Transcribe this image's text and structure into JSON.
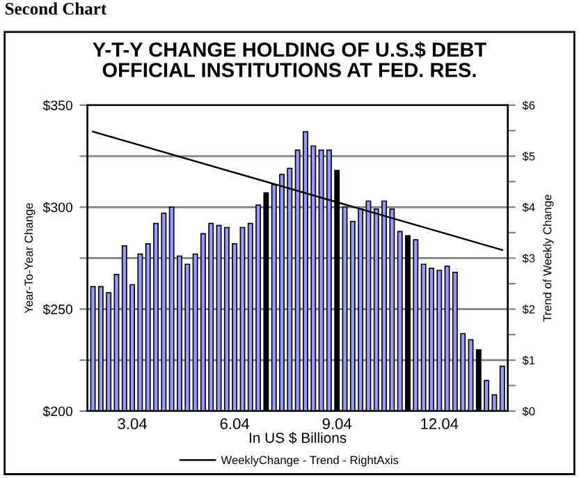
{
  "chart_data": {
    "type": "bar",
    "title": "Y-T-Y CHANGE HOLDING OF U.S.$ DEBT\nOFFICIAL INSTITUTIONS AT FED. RES.",
    "xlabel": "In US $ Billions",
    "ylabel": "Year-To-Year Change",
    "y2label": "Trend of Weekly Change",
    "annotations": [
      "Second Chart"
    ],
    "categories": [
      null,
      null,
      null,
      null,
      null,
      "3.04",
      null,
      null,
      null,
      null,
      null,
      null,
      null,
      null,
      null,
      null,
      null,
      null,
      "6.04",
      null,
      null,
      null,
      null,
      null,
      null,
      null,
      null,
      null,
      null,
      null,
      null,
      "9.04",
      null,
      null,
      null,
      null,
      null,
      null,
      null,
      null,
      null,
      null,
      null,
      null,
      "12.04",
      null,
      null,
      null,
      null,
      null,
      null,
      null,
      null
    ],
    "series": [
      {
        "colors": [
          "#9999ff",
          "#9999ff",
          "#9999ff",
          "#9999ff",
          "#9999ff",
          "#9999ff",
          "#9999ff",
          "#9999ff",
          "#9999ff",
          "#9999ff",
          "#9999ff",
          "#9999ff",
          "#9999ff",
          "#9999ff",
          "#9999ff",
          "#9999ff",
          "#9999ff",
          "#9999ff",
          "#9999ff",
          "#9999ff",
          "#9999ff",
          "#9999ff",
          "#000000",
          "#9999ff",
          "#9999ff",
          "#9999ff",
          "#9999ff",
          "#9999ff",
          "#9999ff",
          "#9999ff",
          "#9999ff",
          "#000000",
          "#9999ff",
          "#9999ff",
          "#9999ff",
          "#9999ff",
          "#9999ff",
          "#9999ff",
          "#9999ff",
          "#9999ff",
          "#000000",
          "#9999ff",
          "#9999ff",
          "#9999ff",
          "#9999ff",
          "#9999ff",
          "#9999ff",
          "#9999ff",
          "#9999ff",
          "#000000",
          "#9999ff",
          "#9999ff",
          "#9999ff"
        ],
        "values": [
          261,
          261,
          258,
          267,
          281,
          262,
          277,
          282,
          292,
          297,
          300,
          276,
          272,
          277,
          287,
          292,
          291,
          290,
          282,
          290,
          292,
          301,
          307,
          311,
          316,
          319,
          328,
          337,
          330,
          328,
          328,
          318,
          300,
          293,
          299,
          303,
          299,
          303,
          299,
          288,
          286,
          284,
          272,
          270,
          269,
          271,
          268,
          238,
          235,
          230,
          215,
          208,
          222
        ]
      },
      {
        "type": "line",
        "name": "WeeklyChange - Trend - RightAxis",
        "axis": "y2",
        "color": "#000000",
        "values": [
          5.48,
          null,
          null,
          null,
          null,
          null,
          null,
          null,
          null,
          null,
          null,
          null,
          null,
          null,
          null,
          null,
          null,
          null,
          null,
          null,
          null,
          null,
          null,
          null,
          null,
          null,
          null,
          null,
          null,
          null,
          null,
          null,
          null,
          null,
          null,
          null,
          null,
          null,
          null,
          null,
          null,
          null,
          null,
          null,
          null,
          null,
          null,
          null,
          null,
          null,
          null,
          null,
          3.16
        ]
      }
    ],
    "ylim": [
      200,
      350
    ],
    "yticks": [
      {
        "value": 200,
        "label": "$200"
      },
      {
        "value": 225,
        "label": null
      },
      {
        "value": 250,
        "label": "$250"
      },
      {
        "value": 275,
        "label": null
      },
      {
        "value": 300,
        "label": "$300"
      },
      {
        "value": 325,
        "label": null
      },
      {
        "value": 350,
        "label": "$350"
      }
    ],
    "y2lim": [
      0,
      6
    ],
    "y2ticks": [
      {
        "value": 0,
        "label": "$0"
      },
      {
        "value": 0.5,
        "label": null
      },
      {
        "value": 1,
        "label": "$1"
      },
      {
        "value": 1.5,
        "label": null
      },
      {
        "value": 2,
        "label": "$2"
      },
      {
        "value": 2.5,
        "label": null
      },
      {
        "value": 3,
        "label": "$3"
      },
      {
        "value": 3.5,
        "label": null
      },
      {
        "value": 4,
        "label": "$4"
      },
      {
        "value": 4.5,
        "label": null
      },
      {
        "value": 5,
        "label": "$5"
      },
      {
        "value": 5.5,
        "label": null
      },
      {
        "value": 6,
        "label": "$6"
      }
    ],
    "grid": "y",
    "legend": "bottom"
  }
}
